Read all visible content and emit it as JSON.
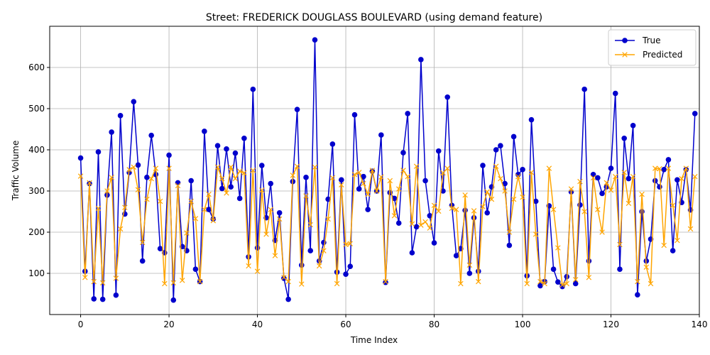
{
  "chart_data": {
    "type": "line",
    "title": "Street: FREDERICK DOUGLASS BOULEVARD (using demand feature)",
    "xlabel": "Time Index",
    "ylabel": "Traffic Volume",
    "xlim": [
      -7,
      140
    ],
    "ylim": [
      0,
      700
    ],
    "x_ticks": [
      0,
      20,
      40,
      60,
      80,
      100,
      120,
      140
    ],
    "y_ticks": [
      100,
      200,
      300,
      400,
      500,
      600
    ],
    "grid": true,
    "legend_position": "top-right",
    "series": [
      {
        "name": "True",
        "color": "#0000cc",
        "marker": "circle",
        "values": [
          380,
          105,
          318,
          38,
          395,
          37,
          290,
          443,
          47,
          483,
          244,
          345,
          517,
          363,
          130,
          333,
          435,
          340,
          160,
          150,
          387,
          35,
          320,
          165,
          155,
          325,
          110,
          80,
          445,
          255,
          232,
          410,
          306,
          402,
          310,
          392,
          282,
          428,
          140,
          547,
          162,
          362,
          235,
          318,
          180,
          247,
          88,
          37,
          323,
          498,
          120,
          333,
          155,
          667,
          130,
          175,
          280,
          414,
          103,
          327,
          98,
          117,
          485,
          305,
          335,
          255,
          348,
          300,
          436,
          78,
          296,
          282,
          222,
          393,
          488,
          150,
          213,
          619,
          325,
          240,
          174,
          397,
          300,
          528,
          265,
          143,
          160,
          253,
          100,
          235,
          105,
          362,
          247,
          310,
          400,
          410,
          318,
          168,
          432,
          340,
          352,
          94,
          473,
          275,
          70,
          80,
          264,
          110,
          79,
          68,
          92,
          298,
          75,
          266,
          547,
          130,
          340,
          332,
          294,
          310,
          355,
          537,
          110,
          428,
          330,
          459,
          48,
          250,
          130,
          183,
          325,
          310,
          352,
          376,
          155,
          327,
          272,
          352,
          254,
          488
        ]
      },
      {
        "name": "Predicted",
        "color": "#ffa500",
        "marker": "x",
        "values": [
          336,
          90,
          320,
          80,
          258,
          77,
          300,
          333,
          88,
          208,
          260,
          352,
          358,
          303,
          175,
          280,
          330,
          355,
          275,
          75,
          355,
          77,
          313,
          83,
          198,
          275,
          233,
          80,
          255,
          292,
          228,
          358,
          330,
          295,
          358,
          330,
          348,
          344,
          118,
          350,
          105,
          302,
          195,
          255,
          143,
          232,
          90,
          80,
          338,
          360,
          74,
          288,
          218,
          358,
          118,
          155,
          232,
          332,
          75,
          315,
          170,
          172,
          340,
          345,
          318,
          292,
          350,
          300,
          334,
          80,
          325,
          240,
          305,
          350,
          335,
          220,
          360,
          217,
          225,
          210,
          265,
          251,
          344,
          355,
          258,
          255,
          75,
          290,
          120,
          252,
          80,
          262,
          298,
          280,
          360,
          330,
          300,
          200,
          280,
          335,
          285,
          75,
          345,
          195,
          80,
          75,
          355,
          255,
          162,
          72,
          75,
          305,
          85,
          323,
          250,
          90,
          332,
          255,
          200,
          320,
          302,
          335,
          170,
          345,
          270,
          335,
          80,
          292,
          115,
          75,
          355,
          354,
          168,
          355,
          265,
          180,
          330,
          355,
          208,
          335
        ]
      }
    ]
  }
}
